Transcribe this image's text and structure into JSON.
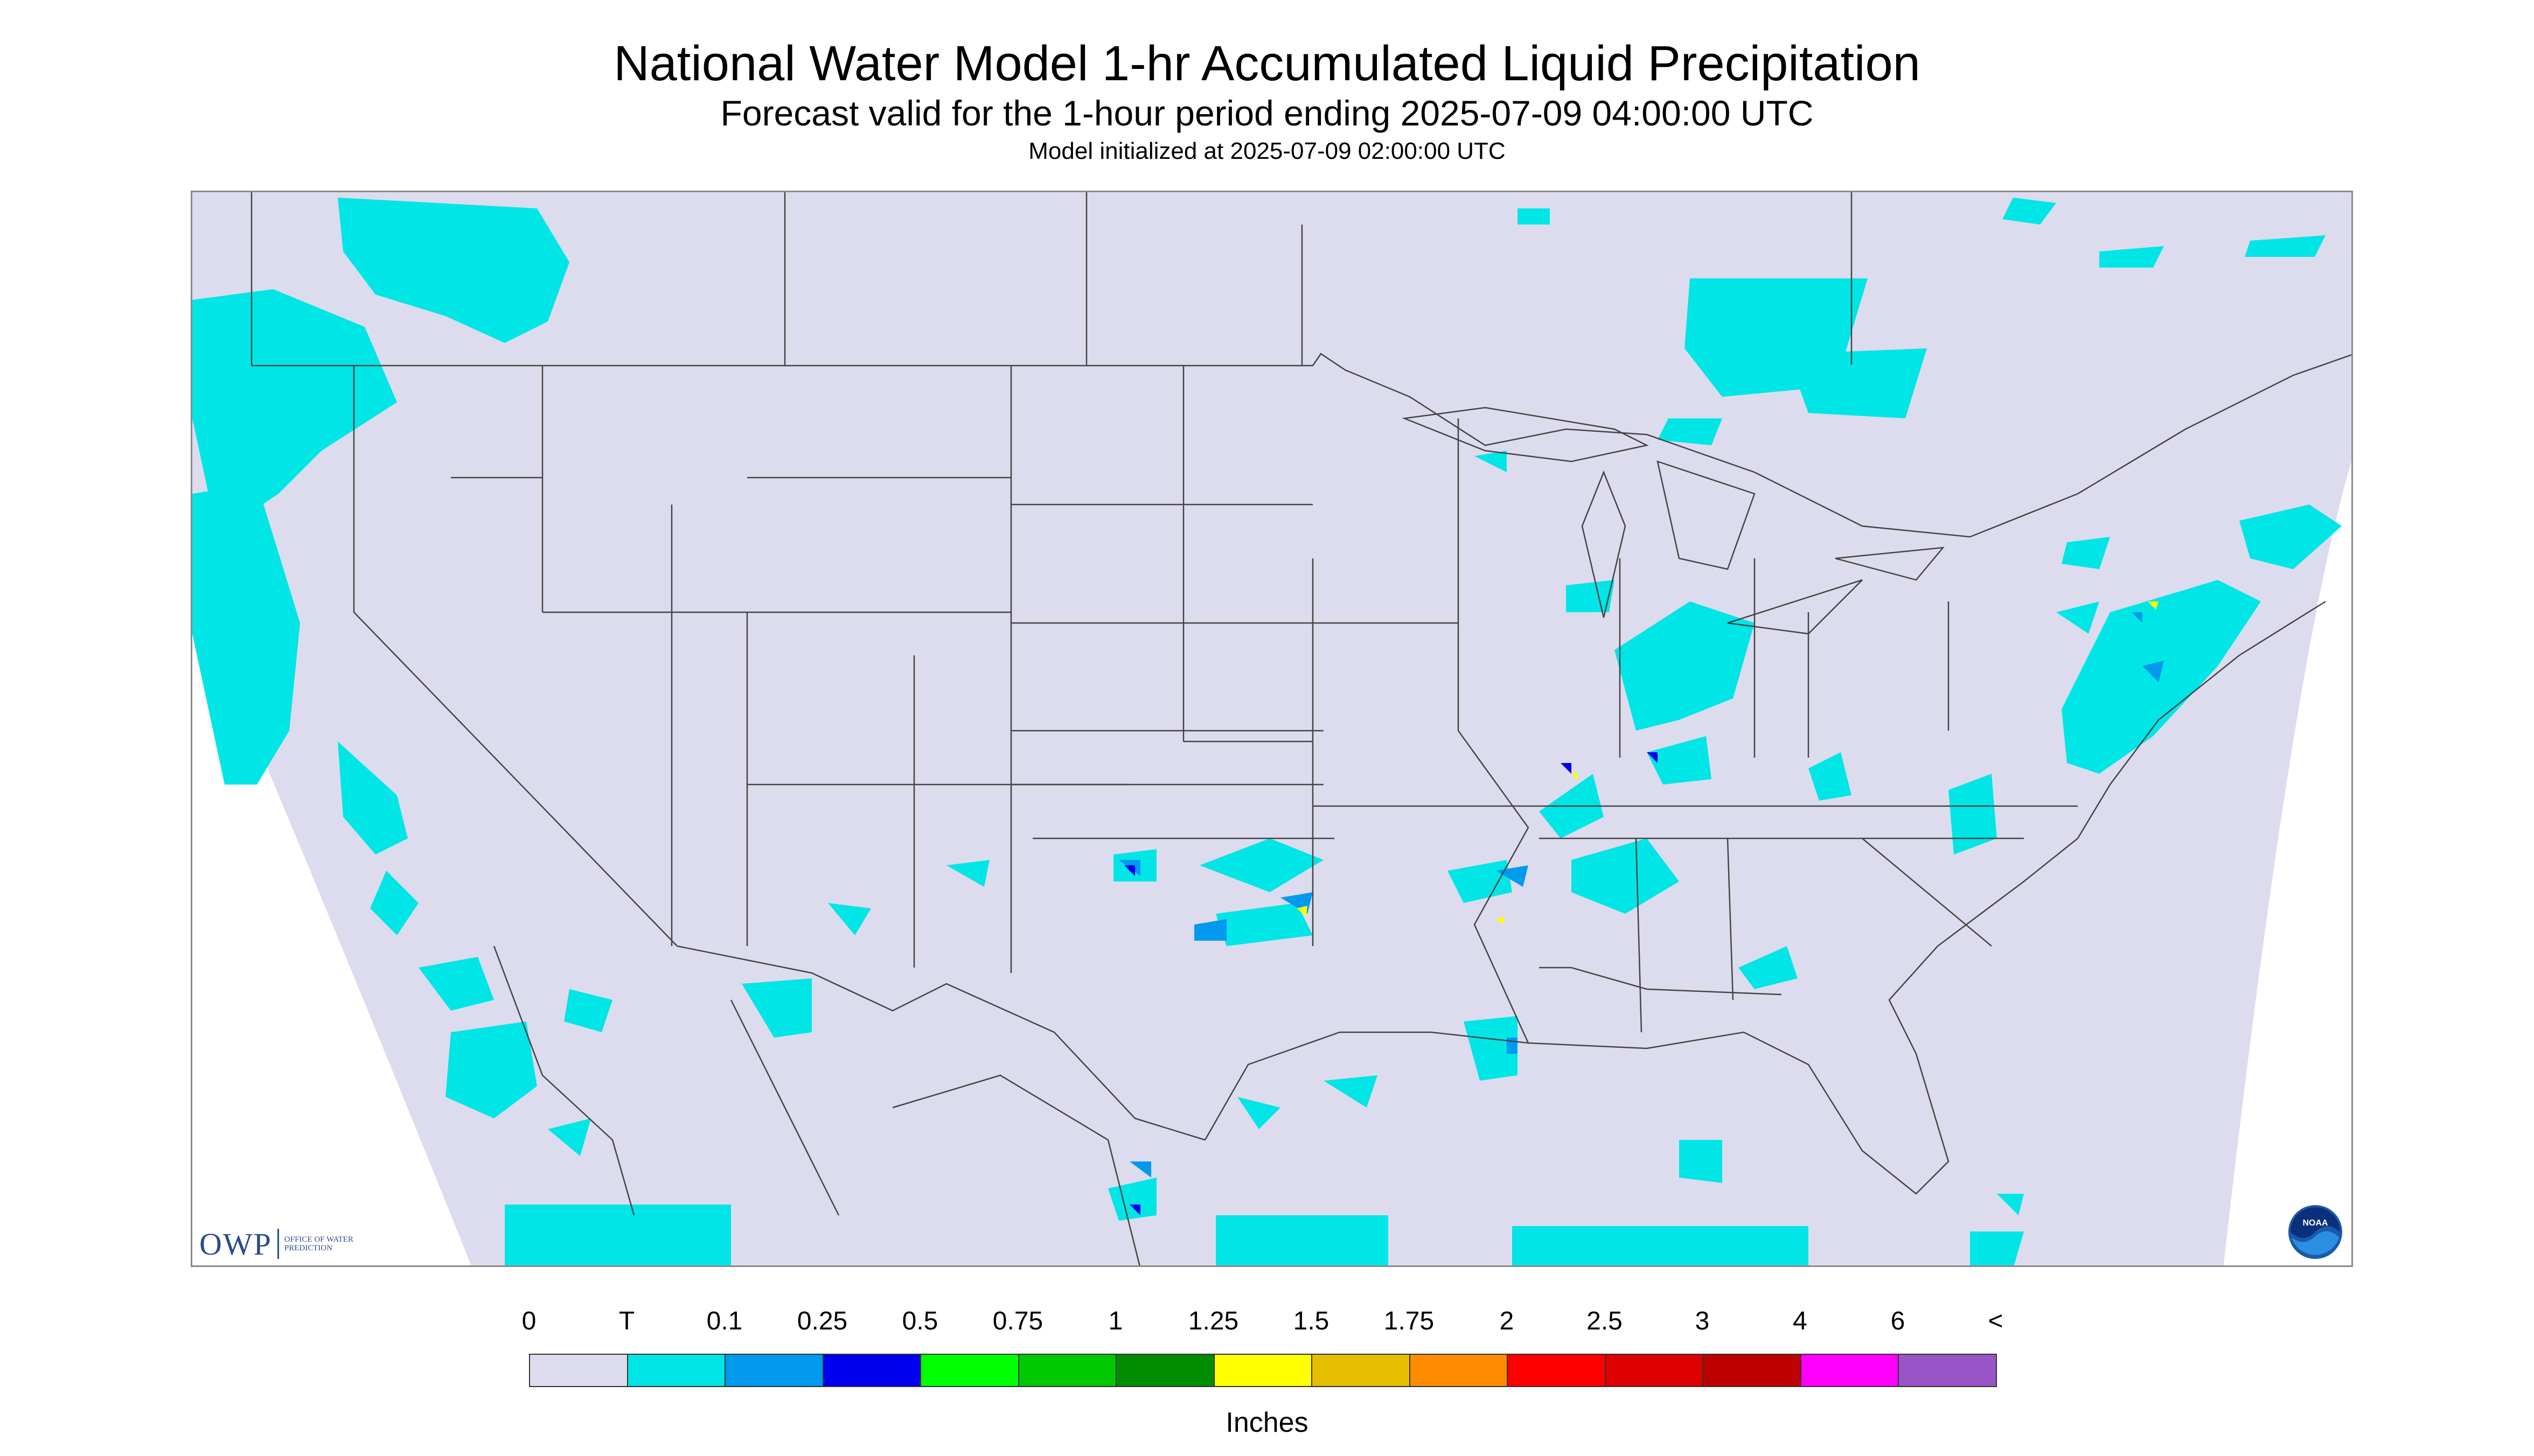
{
  "header": {
    "title": "National Water Model 1-hr Accumulated Liquid Precipitation",
    "subtitle": "Forecast valid for the 1-hour period ending 2025-07-09 04:00:00 UTC",
    "init_line": "Model initialized at 2025-07-09 02:00:00 UTC"
  },
  "map": {
    "background_color": "#dcdcee",
    "light_rain_color": "#00e6e6",
    "moderate_rain_color": "#0099ee",
    "heavy_rain_color": "#0000ee",
    "border_color": "#444444",
    "hot_spot_color": "#ffff00"
  },
  "logos": {
    "owp_wordmark": "OWP",
    "owp_text": "Office of Water Prediction",
    "noaa_text": "NOAA"
  },
  "legend": {
    "labels": [
      "0",
      "T",
      "0.1",
      "0.25",
      "0.5",
      "0.75",
      "1",
      "1.25",
      "1.5",
      "1.75",
      "2",
      "2.5",
      "3",
      "4",
      "6",
      "<"
    ],
    "colors": [
      "#dcdcee",
      "#00e6e6",
      "#0099ee",
      "#0000ee",
      "#00ff00",
      "#00c800",
      "#008c00",
      "#ffff00",
      "#e6be00",
      "#ff8c00",
      "#ff0000",
      "#dc0000",
      "#be0000",
      "#ff00ff",
      "#9955c8"
    ],
    "units": "Inches"
  }
}
